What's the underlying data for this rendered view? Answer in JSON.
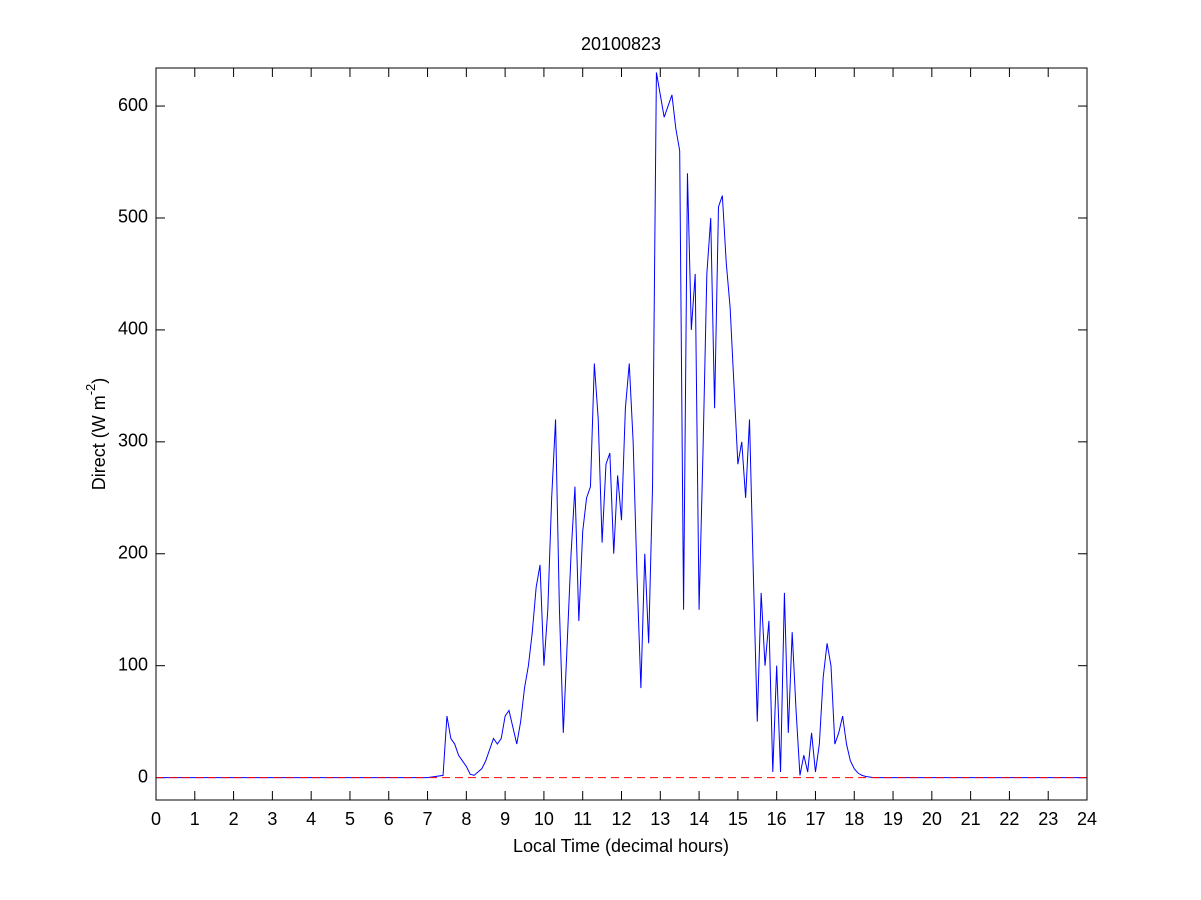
{
  "chart_data": {
    "type": "line",
    "title": "20100823",
    "xlabel": "Local Time (decimal hours)",
    "ylabel": {
      "text": "Direct (W m",
      "superscript": "-2",
      "suffix": ")"
    },
    "x": [
      0,
      7.0,
      7.2,
      7.4,
      7.5,
      7.6,
      7.7,
      7.8,
      7.9,
      8.0,
      8.1,
      8.2,
      8.3,
      8.4,
      8.5,
      8.6,
      8.7,
      8.8,
      8.9,
      9.0,
      9.1,
      9.2,
      9.3,
      9.4,
      9.5,
      9.6,
      9.7,
      9.8,
      9.9,
      10.0,
      10.1,
      10.2,
      10.3,
      10.4,
      10.5,
      10.6,
      10.7,
      10.8,
      10.9,
      11.0,
      11.1,
      11.2,
      11.3,
      11.4,
      11.5,
      11.6,
      11.7,
      11.8,
      11.9,
      12.0,
      12.1,
      12.2,
      12.3,
      12.4,
      12.5,
      12.6,
      12.7,
      12.8,
      12.9,
      13.0,
      13.1,
      13.2,
      13.3,
      13.4,
      13.5,
      13.6,
      13.7,
      13.8,
      13.9,
      14.0,
      14.1,
      14.2,
      14.3,
      14.4,
      14.5,
      14.6,
      14.7,
      14.8,
      14.9,
      15.0,
      15.1,
      15.2,
      15.3,
      15.4,
      15.5,
      15.6,
      15.7,
      15.8,
      15.9,
      16.0,
      16.1,
      16.2,
      16.3,
      16.4,
      16.5,
      16.6,
      16.7,
      16.8,
      16.9,
      17.0,
      17.1,
      17.2,
      17.3,
      17.4,
      17.5,
      17.6,
      17.7,
      17.8,
      17.9,
      18.0,
      18.1,
      18.2,
      18.3,
      18.5,
      24
    ],
    "series": [
      {
        "color": "#0000ff",
        "values": [
          0,
          0,
          1,
          2,
          55,
          35,
          30,
          20,
          15,
          10,
          3,
          2,
          5,
          8,
          15,
          25,
          35,
          30,
          35,
          55,
          60,
          45,
          30,
          50,
          80,
          100,
          130,
          170,
          190,
          100,
          150,
          250,
          320,
          150,
          40,
          120,
          200,
          260,
          140,
          220,
          250,
          260,
          370,
          320,
          210,
          280,
          290,
          200,
          270,
          230,
          330,
          370,
          300,
          180,
          80,
          200,
          120,
          260,
          630,
          610,
          590,
          600,
          610,
          580,
          560,
          150,
          540,
          400,
          450,
          150,
          290,
          450,
          500,
          330,
          510,
          520,
          460,
          420,
          350,
          280,
          300,
          250,
          320,
          180,
          50,
          165,
          100,
          140,
          5,
          100,
          5,
          165,
          40,
          130,
          60,
          2,
          20,
          5,
          40,
          5,
          30,
          90,
          120,
          100,
          30,
          40,
          55,
          30,
          15,
          8,
          4,
          2,
          1,
          0,
          0
        ]
      }
    ],
    "reference_line": {
      "value": 0,
      "color": "#ff0000",
      "dashed": true
    },
    "xlim": [
      0,
      24
    ],
    "xticks": [
      0,
      1,
      2,
      3,
      4,
      5,
      6,
      7,
      8,
      9,
      10,
      11,
      12,
      13,
      14,
      15,
      16,
      17,
      18,
      19,
      20,
      21,
      22,
      23,
      24
    ],
    "ylim": [
      -20,
      634
    ],
    "yticks": [
      0,
      100,
      200,
      300,
      400,
      500,
      600
    ]
  }
}
